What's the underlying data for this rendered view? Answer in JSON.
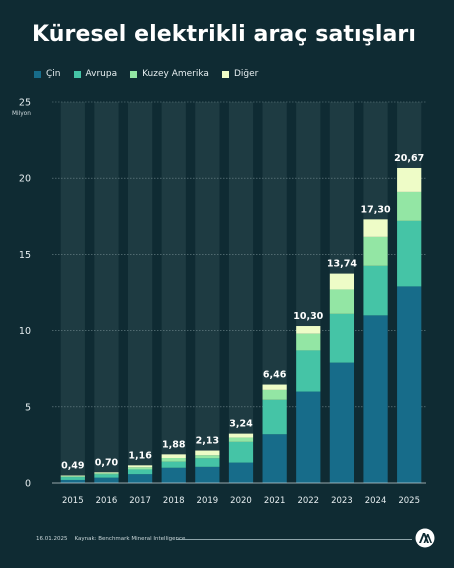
{
  "header": {
    "title": "Küresel elektrikli araç satışları"
  },
  "legend": [
    {
      "label": "Çin",
      "color": "#176c8a"
    },
    {
      "label": "Avrupa",
      "color": "#45c4a6"
    },
    {
      "label": "Kuzey Amerika",
      "color": "#93e6a4"
    },
    {
      "label": "Diğer",
      "color": "#eefcc7"
    }
  ],
  "chart_data": {
    "type": "bar",
    "stacked": true,
    "categories": [
      "2015",
      "2016",
      "2017",
      "2018",
      "2019",
      "2020",
      "2021",
      "2022",
      "2023",
      "2024",
      "2025"
    ],
    "series": [
      {
        "name": "Çin",
        "values": [
          0.2,
          0.35,
          0.58,
          1.0,
          1.06,
          1.34,
          3.2,
          6.0,
          7.9,
          11.0,
          12.9
        ]
      },
      {
        "name": "Avrupa",
        "values": [
          0.19,
          0.22,
          0.31,
          0.4,
          0.56,
          1.36,
          2.26,
          2.7,
          3.2,
          3.25,
          4.3
        ]
      },
      {
        "name": "Kuzey Amerika",
        "values": [
          0.06,
          0.08,
          0.14,
          0.24,
          0.2,
          0.28,
          0.65,
          1.1,
          1.6,
          1.9,
          1.9
        ]
      },
      {
        "name": "Diğer",
        "values": [
          0.04,
          0.05,
          0.13,
          0.24,
          0.31,
          0.26,
          0.35,
          0.5,
          1.04,
          1.15,
          1.57
        ]
      }
    ],
    "totals": [
      0.49,
      0.7,
      1.16,
      1.88,
      2.13,
      3.24,
      6.46,
      10.3,
      13.74,
      17.3,
      20.67
    ],
    "total_labels": [
      "0,49",
      "0,70",
      "1,16",
      "1,88",
      "2,13",
      "3,24",
      "6,46",
      "10,30",
      "13,74",
      "17,30",
      "20,67"
    ],
    "ylabel": "Milyon",
    "ylim": [
      0,
      25
    ],
    "yticks": [
      0,
      5,
      10,
      15,
      20,
      25
    ],
    "grid": true,
    "legend_position": "top-left"
  },
  "footer": {
    "date": "16.01.2025",
    "source": "Kaynak: Benchmark Mineral Intelligence",
    "logo": "aa-logo"
  }
}
